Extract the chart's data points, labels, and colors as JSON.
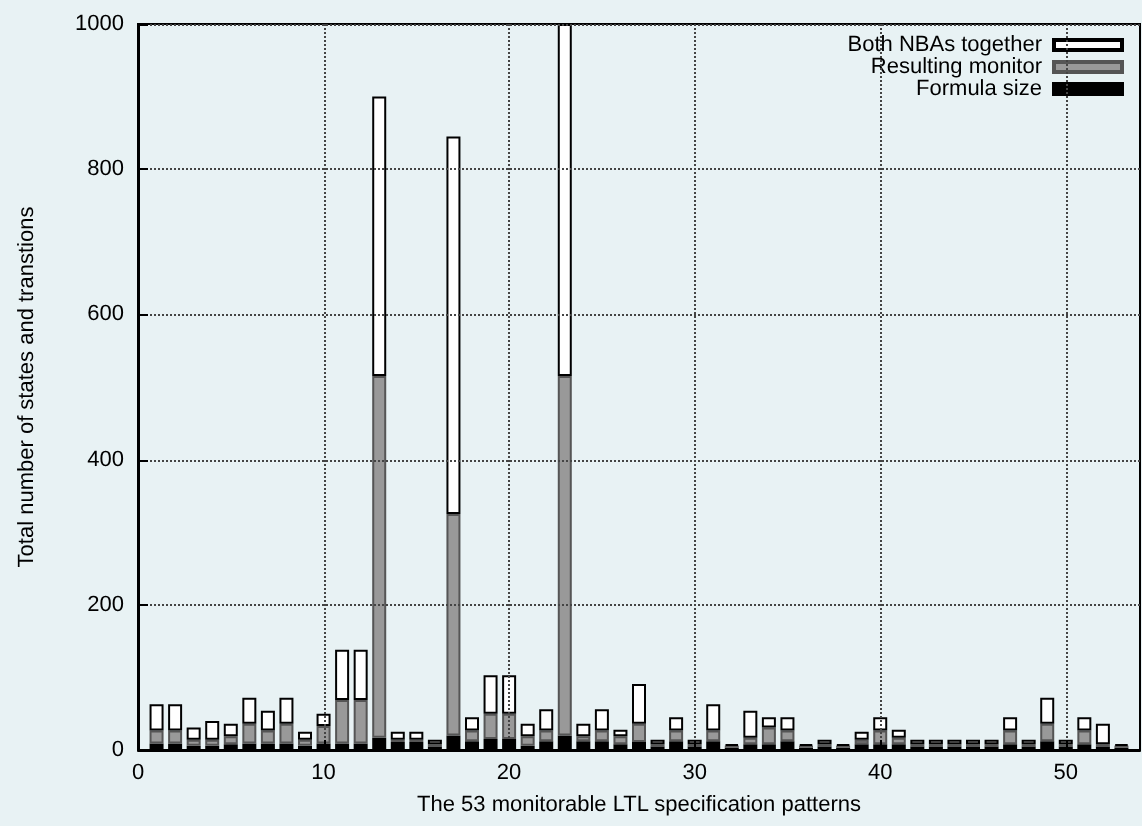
{
  "chart_data": {
    "type": "bar",
    "xlabel": "The 53 monitorable LTL specification patterns",
    "ylabel": "Total number of states and transtions",
    "x": [
      1,
      2,
      3,
      4,
      5,
      6,
      7,
      8,
      9,
      10,
      11,
      12,
      13,
      14,
      15,
      16,
      17,
      18,
      19,
      20,
      21,
      22,
      23,
      24,
      25,
      26,
      27,
      28,
      29,
      30,
      31,
      32,
      33,
      34,
      35,
      36,
      37,
      38,
      39,
      40,
      41,
      42,
      43,
      44,
      45,
      46,
      47,
      48,
      49,
      50,
      51,
      52,
      53
    ],
    "stacked": true,
    "series": [
      {
        "name": "Formula size",
        "color": "#000000",
        "values": [
          9,
          9,
          6,
          6,
          8,
          9,
          9,
          9,
          6,
          9,
          9,
          9,
          17,
          11,
          11,
          5,
          20,
          12,
          15,
          15,
          6,
          12,
          20,
          12,
          12,
          8,
          11,
          5,
          12,
          5,
          12,
          3,
          8,
          8,
          12,
          3,
          5,
          3,
          8,
          8,
          8,
          5,
          5,
          5,
          5,
          5,
          8,
          5,
          12,
          5,
          8,
          5,
          3
        ]
      },
      {
        "name": "Resulting monitor",
        "color": "#999999",
        "values": [
          18,
          18,
          8,
          8,
          11,
          27,
          18,
          27,
          8,
          24,
          60,
          60,
          498,
          3,
          3,
          3,
          305,
          15,
          35,
          35,
          13,
          15,
          495,
          7,
          15,
          11,
          25,
          3,
          15,
          3,
          15,
          3,
          9,
          23,
          15,
          3,
          3,
          3,
          6,
          19,
          9,
          3,
          3,
          3,
          3,
          3,
          19,
          3,
          24,
          3,
          19,
          3,
          3
        ]
      },
      {
        "name": "Both NBAs together",
        "color": "#ffffff",
        "values": [
          36,
          36,
          17,
          26,
          17,
          36,
          27,
          36,
          11,
          17,
          69,
          69,
          385,
          11,
          11,
          6,
          520,
          18,
          53,
          53,
          17,
          29,
          485,
          17,
          29,
          9,
          55,
          6,
          18,
          6,
          36,
          2,
          37,
          14,
          18,
          2,
          6,
          2,
          11,
          18,
          11,
          6,
          6,
          6,
          6,
          6,
          18,
          6,
          36,
          6,
          18,
          28,
          2
        ]
      }
    ],
    "xlim": [
      0,
      54
    ],
    "xticks": [
      0,
      10,
      20,
      30,
      40,
      50
    ],
    "ylim": [
      0,
      1000
    ],
    "yticks": [
      0,
      200,
      400,
      600,
      800,
      1000
    ],
    "grid": true,
    "legend": "top right"
  }
}
